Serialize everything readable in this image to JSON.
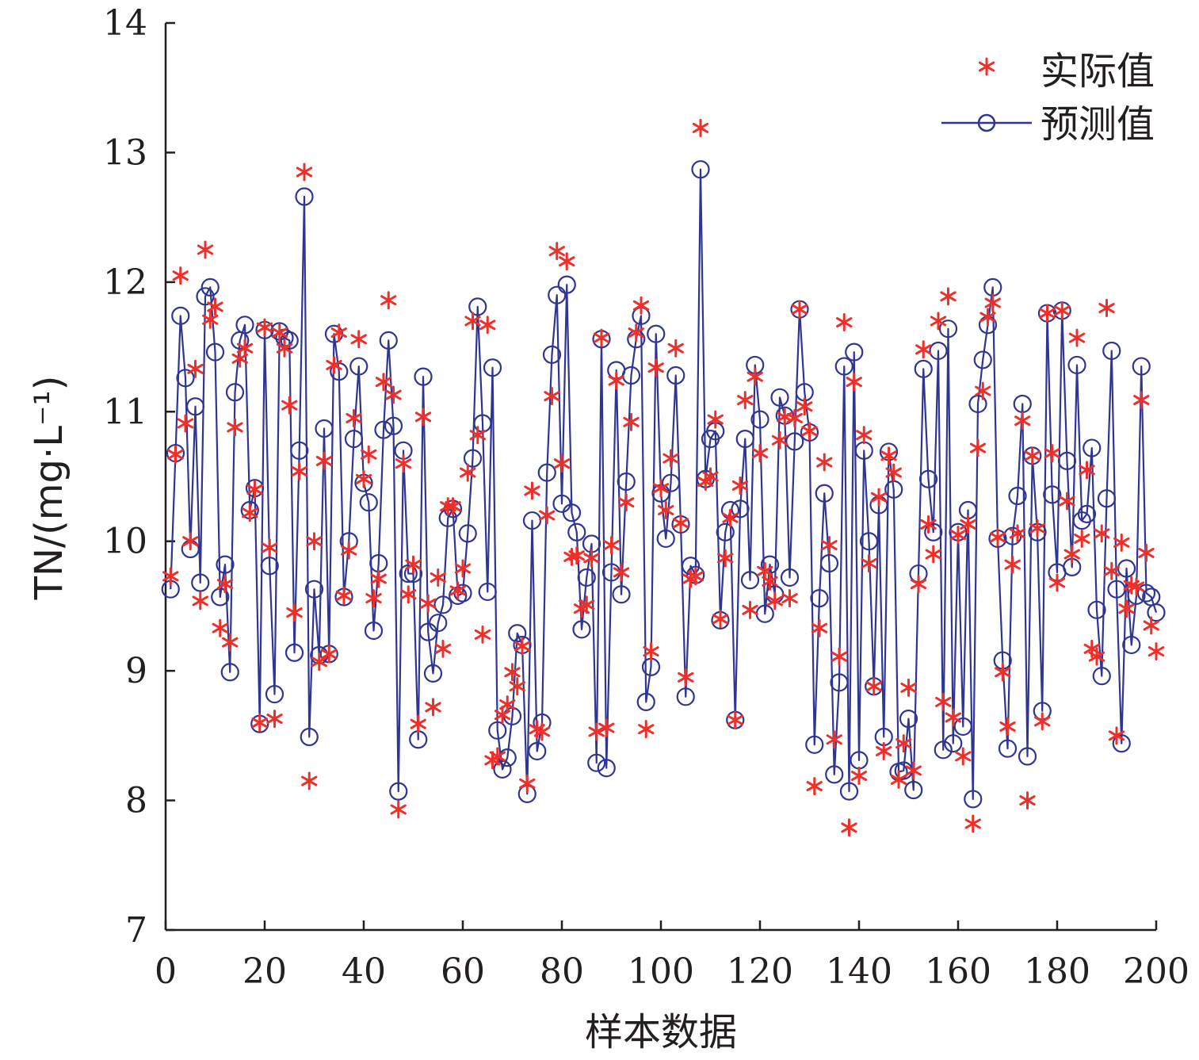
{
  "chart_data": {
    "type": "line",
    "xlabel": "样本数据",
    "ylabel": "TN/(mg·L⁻¹)",
    "xlim": [
      0,
      200
    ],
    "ylim": [
      7,
      14
    ],
    "x_ticks": [
      "0",
      "20",
      "40",
      "60",
      "80",
      "100",
      "120",
      "140",
      "160",
      "180",
      "200"
    ],
    "y_ticks": [
      "7",
      "8",
      "9",
      "10",
      "11",
      "12",
      "13",
      "14"
    ],
    "grid": false,
    "legend_position": "top-right",
    "colors": {
      "actual": "#ee2f2a",
      "predicted": "#2e3592",
      "axis": "#231f20"
    },
    "series": [
      {
        "name": "实际值",
        "marker": "asterisk",
        "values": [
          9.73,
          10.67,
          12.05,
          10.91,
          10.0,
          11.33,
          9.54,
          12.25,
          11.71,
          11.81,
          9.33,
          9.67,
          9.22,
          10.88,
          11.41,
          11.49,
          10.22,
          10.4,
          8.6,
          11.65,
          9.95,
          8.63,
          11.61,
          11.49,
          11.05,
          9.45,
          10.54,
          12.85,
          8.15,
          10.0,
          9.07,
          10.62,
          9.13,
          11.36,
          11.61,
          9.58,
          9.93,
          10.95,
          11.56,
          10.48,
          10.67,
          9.56,
          9.71,
          11.23,
          11.86,
          11.13,
          7.93,
          10.6,
          9.59,
          9.82,
          8.59,
          10.96,
          9.52,
          8.72,
          9.72,
          9.17,
          10.27,
          10.27,
          9.62,
          9.79,
          10.53,
          11.7,
          10.82,
          9.28,
          11.67,
          8.31,
          8.34,
          8.66,
          8.74,
          8.99,
          8.88,
          9.19,
          8.13,
          10.39,
          8.55,
          8.53,
          10.2,
          11.12,
          12.24,
          10.6,
          12.16,
          9.88,
          9.89,
          9.48,
          9.51,
          9.87,
          8.53,
          11.57,
          8.56,
          9.97,
          11.24,
          9.76,
          10.3,
          10.92,
          11.61,
          11.82,
          8.55,
          9.15,
          11.34,
          10.41,
          10.24,
          10.64,
          11.49,
          10.14,
          8.95,
          9.71,
          9.73,
          13.19,
          10.46,
          10.5,
          10.94,
          9.4,
          9.87,
          10.18,
          8.62,
          10.43,
          11.09,
          9.47,
          11.27,
          10.68,
          9.77,
          9.69,
          9.54,
          10.78,
          10.96,
          9.56,
          10.95,
          11.79,
          11.04,
          10.85,
          8.11,
          9.33,
          10.61,
          9.97,
          8.47,
          9.11,
          11.69,
          7.79,
          11.23,
          8.19,
          10.82,
          9.83,
          8.88,
          10.34,
          8.38,
          10.66,
          10.53,
          8.16,
          8.44,
          8.87,
          8.23,
          9.67,
          11.48,
          10.13,
          9.9,
          11.7,
          8.76,
          11.89,
          8.64,
          10.05,
          8.34,
          10.13,
          7.82,
          10.72,
          11.16,
          11.73,
          11.84,
          10.03,
          8.99,
          8.57,
          9.82,
          10.06,
          10.93,
          8.0,
          10.66,
          10.1,
          8.61,
          11.76,
          10.68,
          9.68,
          11.78,
          10.31,
          9.9,
          11.57,
          10.02,
          10.55,
          9.17,
          9.11,
          10.06,
          11.8,
          9.77,
          8.5,
          9.99,
          9.48,
          9.66,
          9.65,
          11.09,
          9.91,
          9.35,
          9.15
        ]
      },
      {
        "name": "预测值",
        "marker": "circle",
        "values": [
          9.63,
          10.68,
          11.74,
          11.26,
          9.94,
          11.04,
          9.68,
          11.89,
          11.96,
          11.46,
          9.57,
          9.82,
          8.99,
          11.15,
          11.55,
          11.67,
          10.24,
          10.41,
          8.59,
          11.63,
          9.81,
          8.82,
          11.62,
          11.57,
          11.55,
          9.14,
          10.7,
          12.66,
          8.49,
          9.63,
          9.12,
          10.87,
          9.13,
          11.6,
          11.31,
          9.57,
          10.0,
          10.79,
          11.35,
          10.45,
          10.3,
          9.31,
          9.83,
          10.86,
          11.55,
          10.89,
          8.07,
          10.7,
          9.75,
          9.75,
          8.47,
          11.27,
          9.3,
          8.98,
          9.37,
          9.51,
          10.18,
          10.25,
          9.58,
          9.6,
          10.06,
          10.64,
          11.81,
          10.91,
          9.61,
          11.34,
          8.54,
          8.24,
          8.33,
          8.65,
          9.29,
          9.2,
          8.05,
          10.16,
          8.38,
          8.6,
          10.53,
          11.44,
          11.9,
          10.29,
          11.98,
          10.22,
          10.07,
          9.32,
          9.72,
          9.98,
          8.29,
          11.56,
          8.25,
          9.76,
          11.32,
          9.59,
          10.46,
          11.28,
          11.56,
          11.74,
          8.76,
          9.03,
          11.6,
          10.37,
          10.02,
          10.45,
          11.28,
          10.13,
          8.8,
          9.81,
          9.74,
          12.87,
          10.48,
          10.79,
          10.85,
          9.39,
          10.07,
          10.24,
          8.62,
          10.25,
          10.79,
          9.7,
          11.36,
          10.94,
          9.44,
          9.82,
          9.59,
          11.11,
          10.97,
          9.72,
          10.77,
          11.79,
          11.15,
          10.84,
          8.43,
          9.56,
          10.37,
          9.83,
          8.2,
          8.91,
          11.35,
          8.07,
          11.46,
          8.31,
          10.7,
          10.0,
          8.88,
          10.28,
          8.49,
          10.69,
          10.4,
          8.22,
          8.23,
          8.63,
          8.08,
          9.75,
          11.33,
          10.48,
          10.07,
          11.47,
          8.39,
          11.64,
          8.44,
          10.07,
          8.57,
          10.24,
          8.01,
          11.06,
          11.4,
          11.67,
          11.96,
          10.02,
          9.08,
          8.4,
          10.04,
          10.35,
          11.06,
          8.34,
          10.66,
          10.07,
          8.69,
          11.76,
          10.36,
          9.76,
          11.78,
          10.62,
          9.8,
          11.36,
          10.16,
          10.21,
          10.72,
          9.47,
          8.96,
          10.33,
          11.47,
          9.63,
          8.44,
          9.79,
          9.2,
          9.58,
          11.35,
          9.6,
          9.57,
          9.45
        ]
      }
    ]
  }
}
